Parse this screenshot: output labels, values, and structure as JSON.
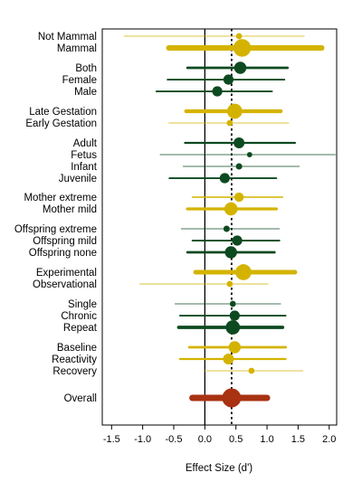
{
  "chart_data": {
    "type": "forest",
    "xlabel": "Effect Size (d')",
    "xlim": [
      -1.65,
      2.12
    ],
    "xticks": [
      "-1.5",
      "-1.0",
      "-0.5",
      "0.0",
      "0.5",
      "1.0",
      "1.5",
      "2.0"
    ],
    "xtick_values": [
      -1.5,
      -1.0,
      -0.5,
      0.0,
      0.5,
      1.0,
      1.5,
      2.0
    ],
    "reference_line": 0.0,
    "overall_line": 0.43,
    "colors": {
      "yellow": "#d4b300",
      "green": "#0d4a20",
      "red": "#a83212"
    },
    "rows": [
      {
        "label": "Not Mammal",
        "estimate": 0.55,
        "lower": -1.3,
        "upper": 1.6,
        "weight": 0.5,
        "color": "yellow"
      },
      {
        "label": "Mammal",
        "estimate": 0.6,
        "lower": -0.58,
        "upper": 1.88,
        "weight": 10,
        "color": "yellow"
      },
      {
        "label": "Both",
        "estimate": 0.57,
        "lower": -0.28,
        "upper": 1.33,
        "weight": 4,
        "color": "green"
      },
      {
        "label": "Female",
        "estimate": 0.38,
        "lower": -0.6,
        "upper": 1.28,
        "weight": 2.5,
        "color": "green"
      },
      {
        "label": "Male",
        "estimate": 0.2,
        "lower": -0.78,
        "upper": 1.08,
        "weight": 2.5,
        "color": "green"
      },
      {
        "label": "Late Gestation",
        "estimate": 0.48,
        "lower": -0.3,
        "upper": 1.22,
        "weight": 7,
        "color": "yellow"
      },
      {
        "label": "Early Gestation",
        "estimate": 0.4,
        "lower": -0.58,
        "upper": 1.35,
        "weight": 0.5,
        "color": "yellow"
      },
      {
        "label": "Adult",
        "estimate": 0.55,
        "lower": -0.32,
        "upper": 1.45,
        "weight": 3,
        "color": "green"
      },
      {
        "label": "Fetus",
        "estimate": 0.72,
        "lower": -0.72,
        "upper": 2.1,
        "weight": 0.3,
        "color": "green"
      },
      {
        "label": "Infant",
        "estimate": 0.55,
        "lower": -0.35,
        "upper": 1.52,
        "weight": 0.6,
        "color": "green"
      },
      {
        "label": "Juvenile",
        "estimate": 0.32,
        "lower": -0.57,
        "upper": 1.15,
        "weight": 2.5,
        "color": "green"
      },
      {
        "label": "Mother extreme",
        "estimate": 0.55,
        "lower": -0.2,
        "upper": 1.25,
        "weight": 2,
        "color": "yellow"
      },
      {
        "label": "Mother mild",
        "estimate": 0.42,
        "lower": -0.28,
        "upper": 1.15,
        "weight": 5,
        "color": "yellow"
      },
      {
        "label": "Offspring extreme",
        "estimate": 0.35,
        "lower": -0.38,
        "upper": 1.2,
        "weight": 0.6,
        "color": "green"
      },
      {
        "label": "Offspring mild",
        "estimate": 0.52,
        "lower": -0.2,
        "upper": 1.2,
        "weight": 2.5,
        "color": "green"
      },
      {
        "label": "Offspring none",
        "estimate": 0.42,
        "lower": -0.28,
        "upper": 1.12,
        "weight": 4,
        "color": "green"
      },
      {
        "label": "Experimental",
        "estimate": 0.62,
        "lower": -0.15,
        "upper": 1.45,
        "weight": 8,
        "color": "yellow"
      },
      {
        "label": "Observational",
        "estimate": 0.4,
        "lower": -1.05,
        "upper": 1.02,
        "weight": 0.5,
        "color": "yellow"
      },
      {
        "label": "Single",
        "estimate": 0.45,
        "lower": -0.48,
        "upper": 1.22,
        "weight": 0.5,
        "color": "green"
      },
      {
        "label": "Chronic",
        "estimate": 0.48,
        "lower": -0.4,
        "upper": 1.3,
        "weight": 2.5,
        "color": "green"
      },
      {
        "label": "Repeat",
        "estimate": 0.45,
        "lower": -0.42,
        "upper": 1.25,
        "weight": 6,
        "color": "green"
      },
      {
        "label": "Baseline",
        "estimate": 0.48,
        "lower": -0.25,
        "upper": 1.3,
        "weight": 4,
        "color": "yellow"
      },
      {
        "label": "Reactivity",
        "estimate": 0.38,
        "lower": -0.4,
        "upper": 1.3,
        "weight": 3,
        "color": "yellow"
      },
      {
        "label": "Recovery",
        "estimate": 0.75,
        "lower": 0.0,
        "upper": 1.58,
        "weight": 0.5,
        "color": "yellow"
      },
      {
        "label": "Overall",
        "estimate": 0.43,
        "lower": -0.2,
        "upper": 1.0,
        "weight": 12,
        "color": "red"
      }
    ]
  }
}
